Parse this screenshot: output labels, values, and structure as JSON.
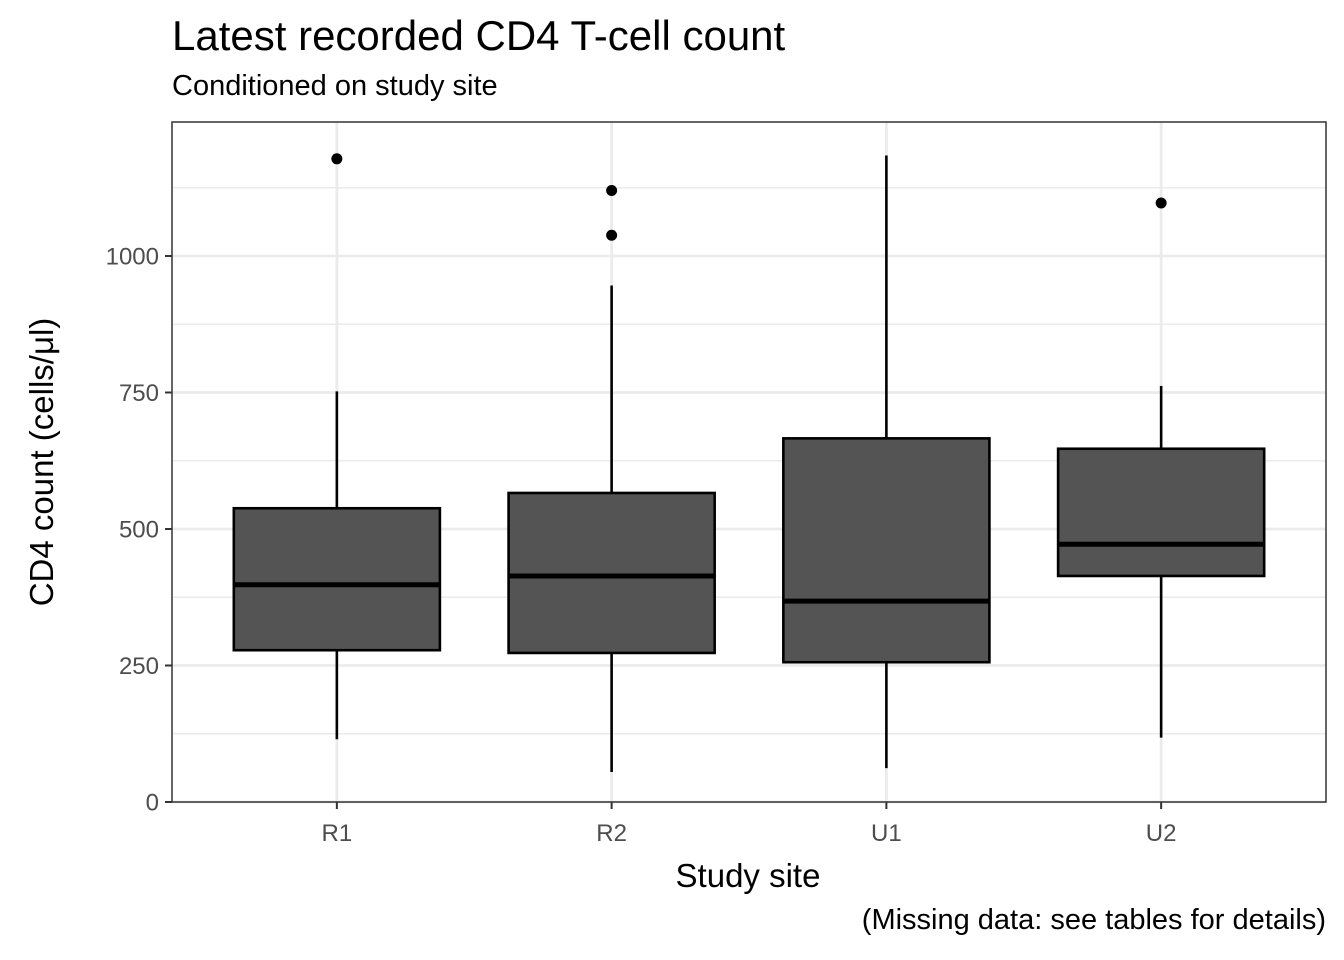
{
  "chart_data": {
    "type": "box",
    "title": "Latest recorded CD4 T-cell count",
    "subtitle": "Conditioned on study site",
    "caption": "(Missing data: see tables for details)",
    "xlabel": "Study site",
    "ylabel": "CD4 count (cells/μl)",
    "ylim": [
      0,
      1200
    ],
    "yticks": [
      0,
      250,
      500,
      750,
      1000
    ],
    "categories": [
      "R1",
      "R2",
      "U1",
      "U2"
    ],
    "boxes": [
      {
        "category": "R1",
        "whisker_low": 115,
        "q1": 278,
        "median": 398,
        "q3": 538,
        "whisker_high": 752,
        "outliers": [
          1178
        ]
      },
      {
        "category": "R2",
        "whisker_low": 55,
        "q1": 273,
        "median": 414,
        "q3": 566,
        "whisker_high": 946,
        "outliers": [
          1038,
          1120
        ]
      },
      {
        "category": "U1",
        "whisker_low": 62,
        "q1": 256,
        "median": 368,
        "q3": 666,
        "whisker_high": 1184,
        "outliers": []
      },
      {
        "category": "U2",
        "whisker_low": 118,
        "q1": 414,
        "median": 472,
        "q3": 647,
        "whisker_high": 762,
        "outliers": [
          1097
        ]
      }
    ],
    "grid": true,
    "colors": {
      "box_fill": "#545454",
      "box_stroke": "#000000",
      "grid": "#ebebeb",
      "panel_border": "#333333"
    }
  }
}
